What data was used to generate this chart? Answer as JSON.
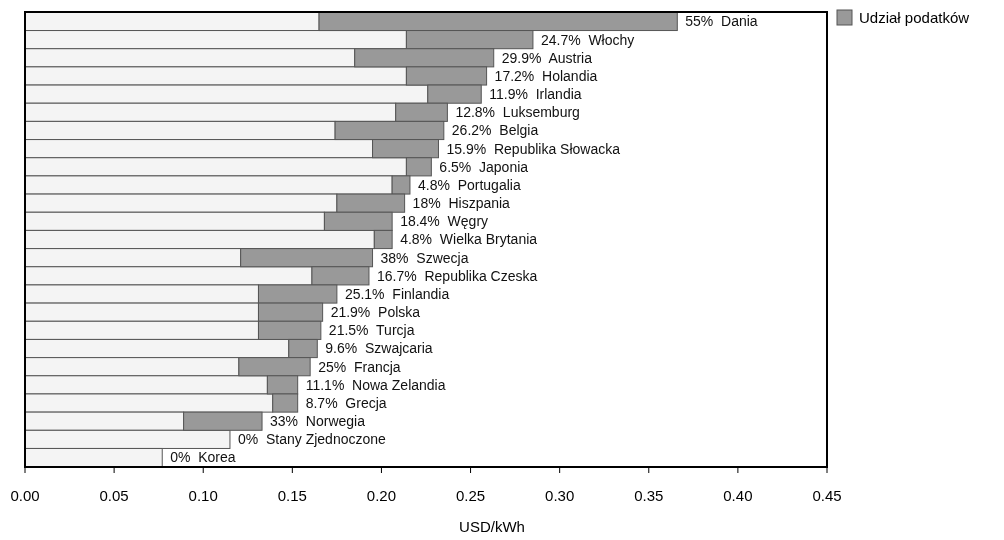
{
  "chart_data": {
    "type": "bar",
    "orientation": "horizontal",
    "stacked": true,
    "xlabel": "USD/kWh",
    "categories": [
      "55%  Dania",
      "24.7%  Włochy",
      "29.9%  Austria",
      "17.2%  Holandia",
      "11.9%  Irlandia",
      "12.8%  Luksemburg",
      "26.2%  Belgia",
      "15.9%  Republika Słowacka",
      "6.5%  Japonia",
      "4.8%  Portugalia",
      "18%  Hiszpania",
      "18.4%  Węgry",
      "4.8%  Wielka Brytania",
      "38%  Szwecja",
      "16.7%  Republika Czeska",
      "25.1%  Finlandia",
      "21.9%  Polska",
      "21.5%  Turcja",
      "9.6%  Szwajcaria",
      "25%  Francja",
      "11.1%  Nowa Zelandia",
      "8.7%  Grecja",
      "33%  Norwegia",
      "0%  Stany Zjednoczone",
      "0%  Korea"
    ],
    "series": [
      {
        "color": "#f4f4f4",
        "values": [
          0.165,
          0.214,
          0.185,
          0.214,
          0.226,
          0.208,
          0.174,
          0.195,
          0.214,
          0.206,
          0.175,
          0.168,
          0.196,
          0.121,
          0.161,
          0.131,
          0.131,
          0.131,
          0.148,
          0.12,
          0.136,
          0.139,
          0.089,
          0.115,
          0.077
        ]
      },
      {
        "name": "Udział podatków",
        "color": "#999999",
        "values": [
          0.201,
          0.071,
          0.078,
          0.045,
          0.03,
          0.029,
          0.061,
          0.037,
          0.014,
          0.01,
          0.038,
          0.038,
          0.01,
          0.074,
          0.032,
          0.044,
          0.036,
          0.035,
          0.016,
          0.04,
          0.017,
          0.014,
          0.044,
          0,
          0
        ]
      }
    ],
    "xlim": [
      0,
      0.45
    ],
    "xticks": [
      {
        "value": 0,
        "label": "0.00"
      },
      {
        "value": 0.05,
        "label": "0.05"
      },
      {
        "value": 0.1,
        "label": "0.10"
      },
      {
        "value": 0.15,
        "label": "0.15"
      },
      {
        "value": 0.2,
        "label": "0.20"
      },
      {
        "value": 0.25,
        "label": "0.25"
      },
      {
        "value": 0.3,
        "label": "0.30"
      },
      {
        "value": 0.35,
        "label": "0.35"
      },
      {
        "value": 0.4,
        "label": "0.40"
      },
      {
        "value": 0.45,
        "label": "0.45"
      }
    ],
    "legend": "top right"
  }
}
